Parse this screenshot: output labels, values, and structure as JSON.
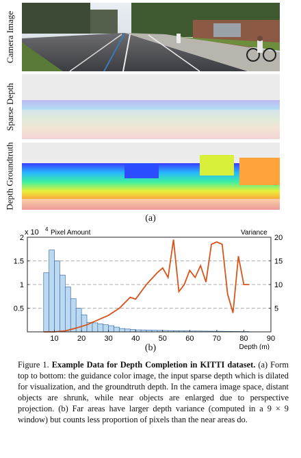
{
  "panel_labels": {
    "camera": "Camera Image",
    "sparse": "Sparse Depth",
    "gt": "Depth Groundtruth"
  },
  "sublabel_a": "(a)",
  "sublabel_b": "(b)",
  "colors": {
    "bar_fill": "#bcd9f2",
    "bar_stroke": "#3c6fa6",
    "line": "#d95319",
    "panel_bg": "#ececec"
  },
  "chart_data": {
    "type": "bar",
    "left_axis_multiplier": "x 10",
    "left_axis_exponent": "4",
    "left_axis_title": "Pixel Amount",
    "right_axis_title": "Variance",
    "xlabel": "Depth (m)",
    "xlim": [
      0,
      90
    ],
    "ylim_left": [
      0,
      20000
    ],
    "ylim_right": [
      0,
      20
    ],
    "x_ticks": [
      "10",
      "20",
      "30",
      "40",
      "50",
      "60",
      "70",
      "80",
      "90"
    ],
    "y_left_ticks": [
      "0.5",
      "1",
      "1.5",
      "2"
    ],
    "y_right_ticks": [
      "5",
      "10",
      "15",
      "20"
    ],
    "grid_dashed_right": true,
    "bar_series": {
      "bin_width": 2,
      "bin_starts": [
        6,
        8,
        10,
        12,
        14,
        16,
        18,
        20,
        22,
        24,
        26,
        28,
        30,
        32,
        34,
        36,
        38,
        40,
        42,
        44,
        46,
        48,
        50,
        52,
        54,
        56,
        58,
        60,
        62,
        64,
        66,
        68,
        70,
        72,
        74,
        76,
        78,
        80
      ],
      "values": [
        12500,
        17300,
        15000,
        12000,
        9500,
        7000,
        5000,
        3600,
        2000,
        1900,
        1700,
        1500,
        1300,
        1000,
        700,
        600,
        500,
        420,
        400,
        370,
        340,
        310,
        280,
        260,
        240,
        220,
        200,
        180,
        170,
        160,
        150,
        140,
        130,
        110,
        100,
        90,
        80,
        70
      ]
    },
    "line_series": {
      "x": [
        6,
        10,
        14,
        18,
        22,
        26,
        30,
        34,
        38,
        40,
        44,
        48,
        50,
        52,
        54,
        56,
        58,
        60,
        62,
        64,
        66,
        68,
        70,
        72,
        74,
        76,
        78,
        80,
        82
      ],
      "values": [
        0,
        0,
        0.2,
        0.8,
        1.5,
        2.5,
        3.5,
        5,
        7.3,
        6.9,
        10,
        12.5,
        13.5,
        11.5,
        19.5,
        8.5,
        10,
        13,
        11.5,
        14,
        10.5,
        18.5,
        19,
        18.5,
        8,
        4,
        16,
        10,
        10
      ]
    }
  },
  "caption": {
    "fig_label": "Figure 1.",
    "fig_title": "Example Data for Depth Completion in KITTI dataset.",
    "body": "(a) Form top to bottom: the guidance color image, the input sparse depth which is dilated for visualization, and the groundtruth depth. In the camera image space, distant objects are shrunk, while near objects are enlarged due to perspective projection. (b) Far areas have larger depth variance (computed in a 9 × 9 window) but counts less proportion of pixels than the near areas do."
  }
}
